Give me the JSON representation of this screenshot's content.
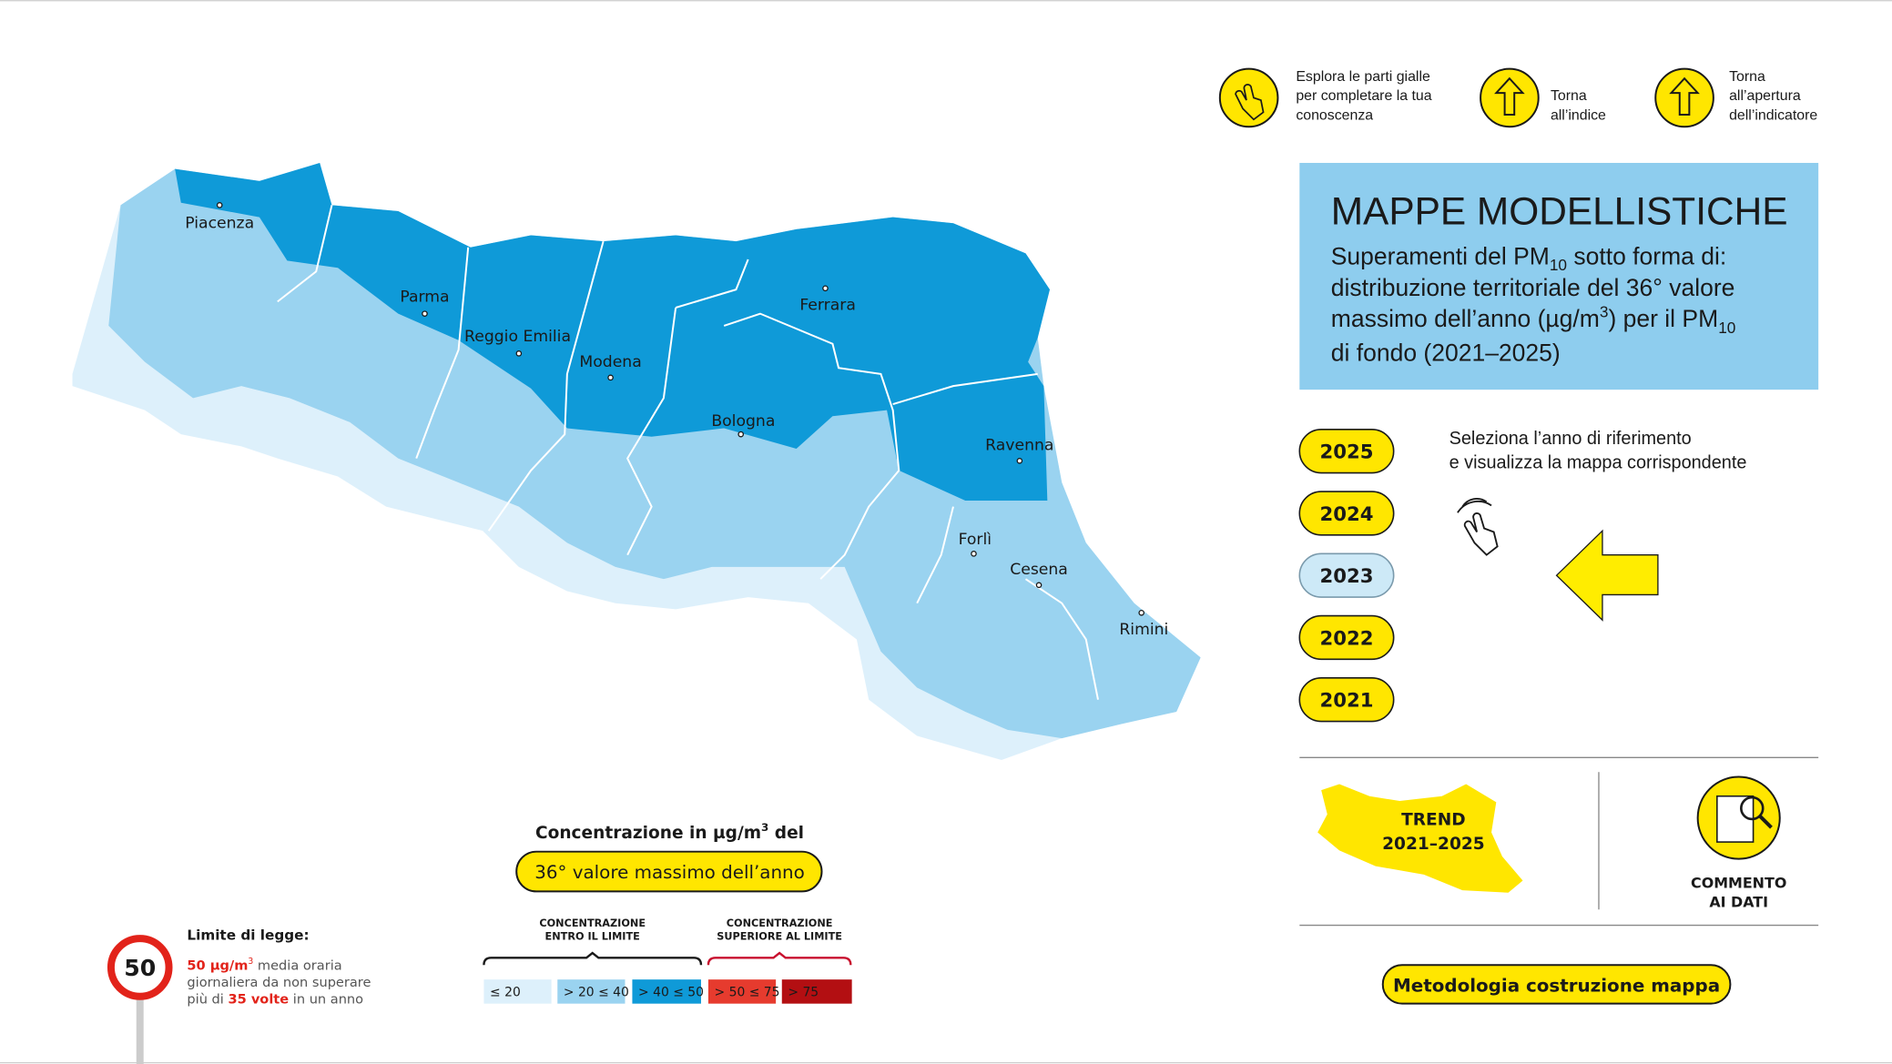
{
  "nav": {
    "explore": [
      "Esplora le parti gialle",
      "per completare la tua",
      "conoscenza"
    ],
    "index": [
      "Torna",
      "all’indice"
    ],
    "opening": [
      "Torna",
      "all’apertura",
      "dell’indicatore"
    ]
  },
  "header": {
    "title": "MAPPE MODELLISTICHE",
    "subtitle": [
      [
        "Superamenti del PM",
        "10",
        " sotto forma di:"
      ],
      [
        "distribuzione territoriale del 36° valore"
      ],
      [
        "massimo dell’anno (µg/m",
        "3",
        ") per il PM",
        "10"
      ],
      [
        "di fondo (2021–2025)"
      ]
    ]
  },
  "years": {
    "options": [
      "2025",
      "2024",
      "2023",
      "2022",
      "2021"
    ],
    "selected": "2023",
    "instruction": [
      "Seleziona l’anno di riferimento",
      "e visualizza la mappa corrispondente"
    ]
  },
  "map": {
    "cities": [
      "Piacenza",
      "Parma",
      "Reggio Emilia",
      "Modena",
      "Bologna",
      "Ferrara",
      "Ravenna",
      "Forlì",
      "Cesena",
      "Rimini"
    ]
  },
  "links": {
    "trend": [
      "TREND",
      "2021–2025"
    ],
    "comment": [
      "COMMENTO",
      "AI DATI"
    ],
    "method": "Metodologia costruzione mappa"
  },
  "legend": {
    "title": [
      "Concentrazione in µg/m",
      "3",
      " del"
    ],
    "measure": "36° valore massimo dell’anno",
    "groups": [
      {
        "lines": [
          "CONCENTRAZIONE",
          "ENTRO IL LIMITE"
        ],
        "color": "#1a1a1a"
      },
      {
        "lines": [
          "CONCENTRAZIONE",
          "SUPERIORE AL LIMITE"
        ],
        "color": "#c8102e"
      }
    ],
    "classes": [
      {
        "label": "≤ 20",
        "color": "#ddf0fb"
      },
      {
        "label": "> 20 ≤ 40",
        "color": "#9ad3f0"
      },
      {
        "label": "> 40 ≤ 50",
        "color": "#0f9ad8"
      },
      {
        "label": "> 50 ≤ 75",
        "color": "#e63b2e"
      },
      {
        "label": "> 75",
        "color": "#b30f12"
      }
    ]
  },
  "limit": {
    "sign": "50",
    "heading": "Limite di legge:",
    "text": [
      [
        "50 µg/m",
        "3",
        " media oraria"
      ],
      [
        "giornaliera da non superare"
      ],
      [
        "più di ",
        "35 volte",
        " in un anno"
      ]
    ]
  }
}
